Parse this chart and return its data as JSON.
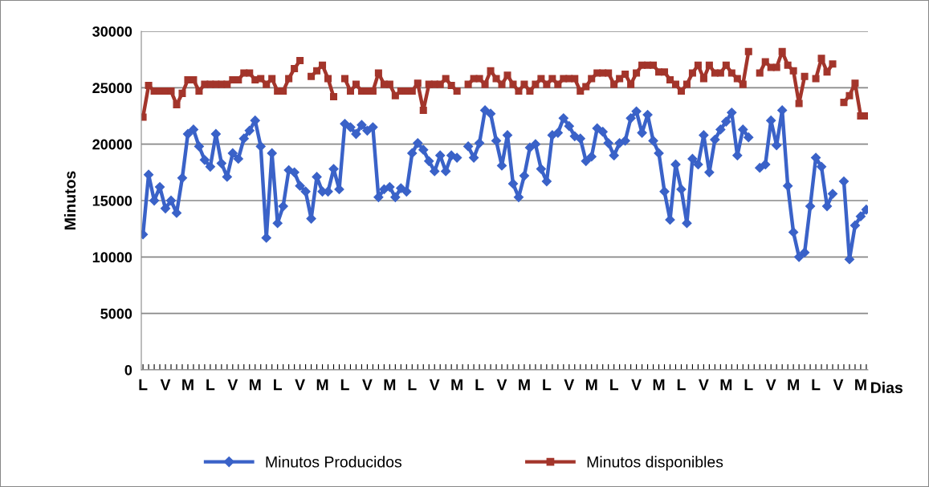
{
  "chart_data": {
    "type": "line",
    "xlabel": "Dias",
    "ylabel": "Minutos",
    "categories": [
      "L",
      null,
      null,
      null,
      "V",
      null,
      null,
      null,
      "M",
      null,
      null,
      null,
      "L",
      null,
      null,
      null,
      "V",
      null,
      null,
      null,
      "M",
      null,
      null,
      null,
      "L",
      null,
      null,
      null,
      "V",
      null,
      null,
      null,
      "M",
      null,
      null,
      null,
      "L",
      null,
      null,
      null,
      "V",
      null,
      null,
      null,
      "M",
      null,
      null,
      null,
      "L",
      null,
      null,
      null,
      "V",
      null,
      null,
      null,
      "M",
      null,
      null,
      null,
      "L",
      null,
      null,
      null,
      "V",
      null,
      null,
      null,
      "M",
      null,
      null,
      null,
      "L",
      null,
      null,
      null,
      "V",
      null,
      null,
      null,
      "M",
      null,
      null,
      null,
      "L",
      null,
      null,
      null,
      "V",
      null,
      null,
      null,
      "M",
      null,
      null,
      null,
      "L",
      null,
      null,
      null,
      "V",
      null,
      null,
      null,
      "M",
      null,
      null,
      null,
      "L",
      null,
      null,
      null,
      "V",
      null,
      null,
      null,
      "M",
      null,
      null,
      null,
      "L",
      null,
      null,
      null,
      "V",
      null,
      null,
      null,
      "M",
      null
    ],
    "series": [
      {
        "name": "Minutos Producidos",
        "color": "#3a62c8",
        "marker": "diamond",
        "values": [
          12000,
          17300,
          15000,
          16200,
          14300,
          15000,
          13900,
          17000,
          20900,
          21300,
          19800,
          18600,
          18000,
          20900,
          18300,
          17100,
          19200,
          18700,
          20500,
          21200,
          22100,
          19800,
          11700,
          19200,
          13000,
          14500,
          17700,
          17500,
          16300,
          15800,
          13400,
          17100,
          15800,
          15800,
          17800,
          16000,
          21800,
          21500,
          20900,
          21700,
          21200,
          21500,
          15300,
          16000,
          16200,
          15300,
          16100,
          15800,
          19200,
          20100,
          19500,
          18500,
          17600,
          19000,
          17600,
          19000,
          18800,
          null,
          19800,
          18800,
          20100,
          23000,
          22700,
          20300,
          18100,
          20800,
          16500,
          15300,
          17200,
          19700,
          20000,
          17800,
          16700,
          20800,
          21000,
          22300,
          21600,
          20700,
          20500,
          18500,
          18900,
          21400,
          21100,
          20100,
          19000,
          20100,
          20300,
          22300,
          22900,
          21000,
          22600,
          20300,
          19200,
          15800,
          13300,
          18200,
          16000,
          13000,
          18700,
          18200,
          20800,
          17500,
          20400,
          21300,
          22000,
          22800,
          19000,
          21300,
          20600,
          null,
          17900,
          18200,
          22100,
          19900,
          23000,
          16300,
          12200,
          10000,
          10400,
          14500,
          18800,
          18000,
          14500,
          15600,
          null,
          16700,
          9800,
          12800,
          13600,
          14200
        ]
      },
      {
        "name": "Minutos disponibles",
        "color": "#a3352b",
        "marker": "square",
        "values": [
          22400,
          25200,
          24700,
          24700,
          24700,
          24700,
          23500,
          24500,
          25700,
          25700,
          24700,
          25300,
          25300,
          25300,
          25300,
          25300,
          25700,
          25700,
          26300,
          26300,
          25700,
          25800,
          25300,
          25800,
          24700,
          24700,
          25800,
          26700,
          27400,
          null,
          26000,
          26500,
          27000,
          25800,
          24200,
          null,
          25800,
          24700,
          25300,
          24700,
          24700,
          24700,
          26300,
          25300,
          25300,
          24300,
          24700,
          24700,
          24700,
          25400,
          23000,
          25300,
          25300,
          25300,
          25800,
          25200,
          24700,
          null,
          25300,
          25800,
          25800,
          25300,
          26500,
          25800,
          25300,
          26100,
          25300,
          24700,
          25300,
          24700,
          25300,
          25800,
          25300,
          25800,
          25300,
          25800,
          25800,
          25800,
          24700,
          25100,
          25800,
          26300,
          26300,
          26300,
          25300,
          25800,
          26200,
          25300,
          26300,
          27000,
          27000,
          27000,
          26400,
          26400,
          25700,
          25300,
          24700,
          25300,
          26300,
          27000,
          25800,
          27000,
          26300,
          26300,
          27000,
          26300,
          25800,
          25300,
          28200,
          null,
          26300,
          27300,
          26800,
          26800,
          28200,
          27000,
          26500,
          23600,
          26000,
          null,
          25800,
          27600,
          26400,
          27100,
          null,
          23700,
          24300,
          25400,
          22500,
          22500
        ]
      }
    ],
    "ylim": [
      0,
      30000
    ],
    "yticks": [
      0,
      5000,
      10000,
      15000,
      20000,
      25000,
      30000
    ],
    "grid": "y",
    "legend": "bottom",
    "line_style": "solid"
  }
}
